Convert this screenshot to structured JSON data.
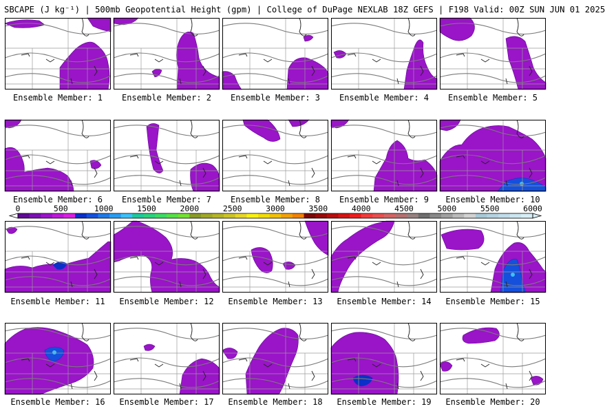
{
  "header": {
    "title": "SBCAPE (J kg⁻¹) | 500mb Geopotential Height (gpm) | College of DuPage NEXLAB 18Z GEFS | F198 Valid: 00Z SUN JUN 01 2025"
  },
  "caption_prefix": "Ensemble Member:",
  "members": [
    {
      "label": "Ensemble Member: 1",
      "intensity": 1
    },
    {
      "label": "Ensemble Member: 2",
      "intensity": 1
    },
    {
      "label": "Ensemble Member: 3",
      "intensity": 1
    },
    {
      "label": "Ensemble Member: 4",
      "intensity": 1
    },
    {
      "label": "Ensemble Member: 5",
      "intensity": 1
    },
    {
      "label": "Ensemble Member: 6",
      "intensity": 1
    },
    {
      "label": "Ensemble Member: 7",
      "intensity": 1
    },
    {
      "label": "Ensemble Member: 8",
      "intensity": 1
    },
    {
      "label": "Ensemble Member: 9",
      "intensity": 1
    },
    {
      "label": "Ensemble Member: 10",
      "intensity": 3
    },
    {
      "label": "Ensemble Member: 11",
      "intensity": 2
    },
    {
      "label": "Ensemble Member: 12",
      "intensity": 1
    },
    {
      "label": "Ensemble Member: 13",
      "intensity": 1
    },
    {
      "label": "Ensemble Member: 14",
      "intensity": 1
    },
    {
      "label": "Ensemble Member: 15",
      "intensity": 3
    },
    {
      "label": "Ensemble Member: 16",
      "intensity": 3
    },
    {
      "label": "Ensemble Member: 17",
      "intensity": 1
    },
    {
      "label": "Ensemble Member: 18",
      "intensity": 1
    },
    {
      "label": "Ensemble Member: 19",
      "intensity": 2
    },
    {
      "label": "Ensemble Member: 20",
      "intensity": 1
    }
  ],
  "colorbar": {
    "tick_labels": [
      "0",
      "500",
      "1000",
      "1500",
      "2000",
      "2500",
      "3000",
      "3500",
      "4000",
      "4500",
      "5000",
      "5500",
      "6000"
    ],
    "colors": [
      "#5e0a94",
      "#7a10b0",
      "#9a14c8",
      "#bc18d8",
      "#d820e0",
      "#0a30c8",
      "#1450dc",
      "#1e7ae6",
      "#289cf0",
      "#3cc0f8",
      "#1ec89a",
      "#2ad27e",
      "#3cdc64",
      "#56e046",
      "#74e032",
      "#8a9a28",
      "#a0a828",
      "#b4b428",
      "#ccc428",
      "#e6d628",
      "#f8f014",
      "#f0dc0a",
      "#f0c00a",
      "#f0a00a",
      "#f08008",
      "#7a0808",
      "#960a0a",
      "#b40e0e",
      "#d21414",
      "#ec1e1e",
      "#f03c3c",
      "#e65050",
      "#d26464",
      "#b47070",
      "#968080",
      "#6e6e6e",
      "#888888",
      "#a0a0a0",
      "#bababa",
      "#d2d2d2",
      "#a8c8d6",
      "#b4d2e0",
      "#c0dcea",
      "#cce6f0",
      "#d8eef6"
    ],
    "range": [
      0,
      6000
    ]
  }
}
